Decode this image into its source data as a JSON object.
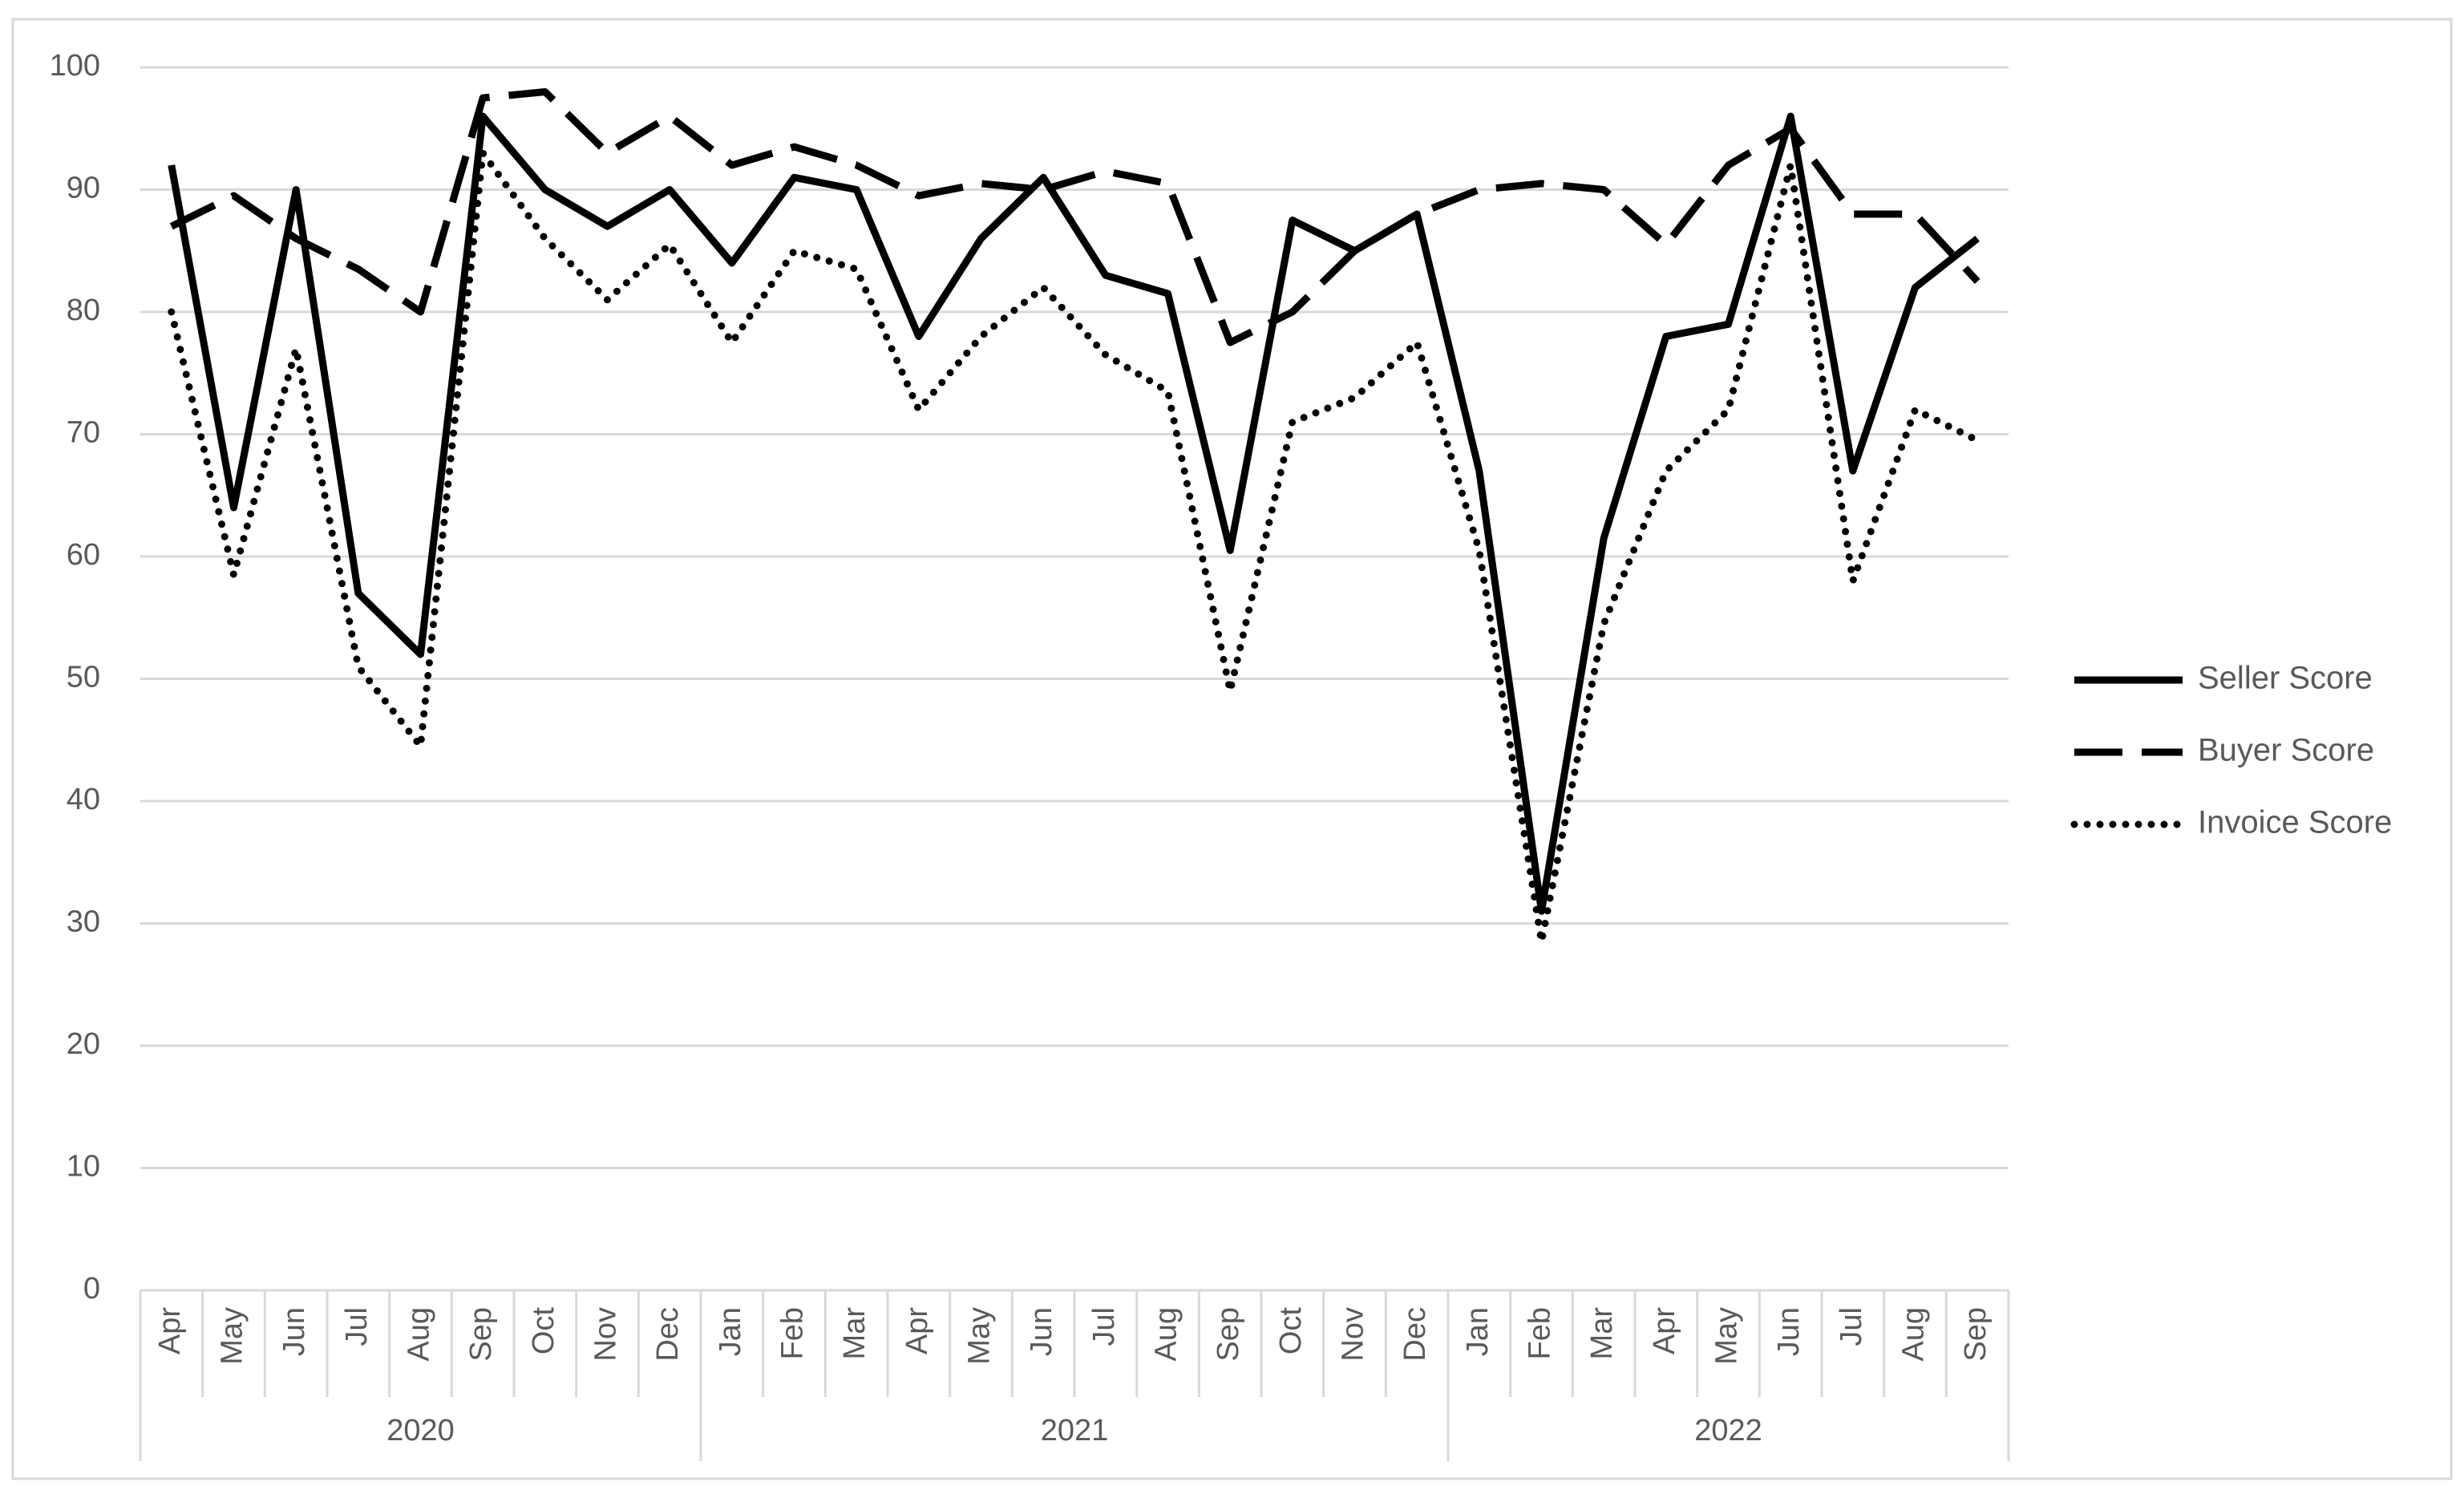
{
  "chart_data": {
    "type": "line",
    "title": "",
    "xlabel": "",
    "ylabel": "",
    "ylim": [
      0,
      100
    ],
    "yticks": [
      0,
      10,
      20,
      30,
      40,
      50,
      60,
      70,
      80,
      90,
      100
    ],
    "grid": true,
    "legend_position": "right",
    "categories": [
      "Apr",
      "May",
      "Jun",
      "Jul",
      "Aug",
      "Sep",
      "Oct",
      "Nov",
      "Dec",
      "Jan",
      "Feb",
      "Mar",
      "Apr",
      "May",
      "Jun",
      "Jul",
      "Aug",
      "Sep",
      "Oct",
      "Nov",
      "Dec",
      "Jan",
      "Feb",
      "Mar",
      "Apr",
      "May",
      "Jun",
      "Jul",
      "Aug",
      "Sep"
    ],
    "year_groups": [
      {
        "label": "2020",
        "start": 0,
        "end": 8
      },
      {
        "label": "2021",
        "start": 9,
        "end": 20
      },
      {
        "label": "2022",
        "start": 21,
        "end": 29
      }
    ],
    "series": [
      {
        "name": "Seller Score",
        "style": "solid",
        "values": [
          92,
          64,
          90,
          57,
          52,
          96,
          90,
          87,
          90,
          84,
          91,
          90,
          78,
          86,
          91,
          83,
          81.5,
          60.5,
          87.5,
          85,
          88,
          67,
          31,
          61.5,
          78,
          79,
          96,
          67,
          82,
          86
        ]
      },
      {
        "name": "Buyer Score",
        "style": "dashed",
        "values": [
          87,
          89.5,
          86,
          83.5,
          80,
          97.5,
          98,
          93,
          96,
          92,
          93.5,
          92,
          89.5,
          90.5,
          90,
          91.5,
          90.5,
          77.5,
          80,
          85,
          88,
          90,
          90.5,
          90,
          85.5,
          92,
          95,
          88,
          88,
          82.5
        ]
      },
      {
        "name": "Invoice Score",
        "style": "dotted",
        "values": [
          80,
          58.5,
          77,
          51,
          44.5,
          93,
          86,
          81,
          85.5,
          77.5,
          85,
          83.5,
          72,
          78,
          82,
          76.5,
          73.5,
          49,
          71,
          73,
          77.5,
          60.5,
          28.5,
          54.5,
          67,
          72,
          92,
          58,
          72,
          69.5
        ]
      }
    ]
  }
}
